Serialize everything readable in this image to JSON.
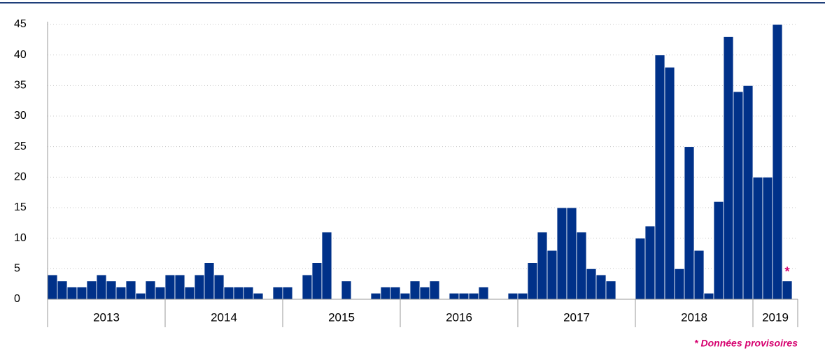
{
  "chart_data": {
    "type": "bar",
    "categories": [
      null,
      null,
      null,
      null,
      null,
      null,
      null,
      null,
      null,
      null,
      null,
      null,
      null,
      null,
      null,
      null,
      null,
      null,
      null,
      null,
      null,
      null,
      null,
      null,
      null,
      null,
      null,
      null,
      null,
      null,
      null,
      null,
      null,
      null,
      null,
      null,
      null,
      null,
      null,
      null,
      null,
      null,
      null,
      null,
      null,
      null,
      null,
      null,
      null,
      null,
      null,
      null,
      null,
      null,
      null,
      null,
      null,
      null,
      null,
      null,
      null,
      null,
      null,
      null,
      null,
      null,
      null,
      null,
      null,
      null,
      null,
      null,
      null,
      null,
      null,
      null
    ],
    "values": [
      4,
      3,
      2,
      2,
      3,
      4,
      3,
      2,
      3,
      1,
      3,
      2,
      4,
      4,
      2,
      4,
      6,
      4,
      2,
      2,
      2,
      1,
      0,
      2,
      2,
      0,
      4,
      6,
      11,
      0,
      3,
      0,
      0,
      1,
      2,
      2,
      1,
      3,
      2,
      3,
      0,
      1,
      1,
      1,
      2,
      0,
      0,
      1,
      1,
      6,
      11,
      8,
      15,
      15,
      11,
      5,
      4,
      3,
      0,
      0,
      10,
      12,
      40,
      38,
      5,
      25,
      8,
      1,
      16,
      43,
      34,
      35,
      20,
      20,
      45,
      3
    ],
    "year_groups": [
      {
        "label": "2013",
        "count": 12
      },
      {
        "label": "2014",
        "count": 12
      },
      {
        "label": "2015",
        "count": 12
      },
      {
        "label": "2016",
        "count": 12
      },
      {
        "label": "2017",
        "count": 12
      },
      {
        "label": "2018",
        "count": 12
      },
      {
        "label": "2019",
        "count": 4
      }
    ],
    "color": "#003189",
    "ylim": [
      0,
      45
    ],
    "yticks": [
      0,
      5,
      10,
      15,
      20,
      25,
      30,
      35,
      40,
      45
    ],
    "grid": true,
    "annotation": "*",
    "footnote": "* Données provisoires"
  }
}
